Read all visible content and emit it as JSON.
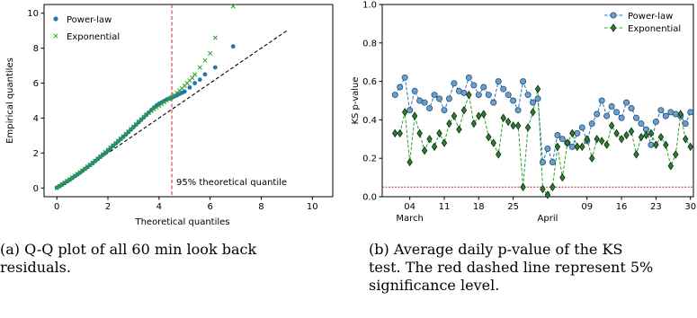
{
  "chart_data": [
    {
      "type": "scatter",
      "title": "",
      "xlabel": "Theoretical quantiles",
      "ylabel": "Empirical quantiles",
      "xlim": [
        -0.5,
        10.8
      ],
      "ylim": [
        -0.5,
        10.5
      ],
      "xticks": [
        "0",
        "2",
        "4",
        "6",
        "8",
        "10"
      ],
      "yticks": [
        "0",
        "2",
        "4",
        "6",
        "8",
        "10"
      ],
      "grid": false,
      "legend_position": "top-left",
      "series": [
        {
          "name": "Power-law",
          "marker": "circle",
          "color": "#1f77b4",
          "x": [
            0,
            0.1,
            0.2,
            0.3,
            0.4,
            0.5,
            0.6,
            0.7,
            0.8,
            0.9,
            1.0,
            1.1,
            1.2,
            1.3,
            1.4,
            1.5,
            1.6,
            1.7,
            1.8,
            1.9,
            2.0,
            2.1,
            2.2,
            2.3,
            2.4,
            2.5,
            2.6,
            2.7,
            2.8,
            2.9,
            3.0,
            3.1,
            3.2,
            3.3,
            3.4,
            3.5,
            3.6,
            3.7,
            3.8,
            3.9,
            4.0,
            4.1,
            4.2,
            4.3,
            4.4,
            4.5,
            4.6,
            4.7,
            4.8,
            4.9,
            5.0,
            5.2,
            5.4,
            5.6,
            5.8,
            6.2,
            6.9
          ],
          "y": [
            0.02,
            0.1,
            0.19,
            0.28,
            0.38,
            0.47,
            0.57,
            0.67,
            0.77,
            0.87,
            0.98,
            1.09,
            1.2,
            1.31,
            1.42,
            1.54,
            1.66,
            1.78,
            1.9,
            2.02,
            2.15,
            2.28,
            2.41,
            2.54,
            2.67,
            2.8,
            2.93,
            3.06,
            3.2,
            3.34,
            3.48,
            3.62,
            3.76,
            3.9,
            4.04,
            4.18,
            4.32,
            4.46,
            4.6,
            4.72,
            4.82,
            4.9,
            4.98,
            5.06,
            5.12,
            5.18,
            5.24,
            5.3,
            5.38,
            5.45,
            5.52,
            5.75,
            6.0,
            6.2,
            6.5,
            6.9,
            8.1
          ]
        },
        {
          "name": "Exponential",
          "marker": "x",
          "color": "#2ca02c",
          "x": [
            0,
            0.1,
            0.2,
            0.3,
            0.4,
            0.5,
            0.6,
            0.7,
            0.8,
            0.9,
            1.0,
            1.1,
            1.2,
            1.3,
            1.4,
            1.5,
            1.6,
            1.7,
            1.8,
            1.9,
            2.0,
            2.1,
            2.2,
            2.3,
            2.4,
            2.5,
            2.6,
            2.7,
            2.8,
            2.9,
            3.0,
            3.1,
            3.2,
            3.3,
            3.4,
            3.5,
            3.6,
            3.7,
            3.8,
            3.9,
            4.0,
            4.1,
            4.2,
            4.3,
            4.4,
            4.5,
            4.6,
            4.7,
            4.8,
            4.9,
            5.0,
            5.1,
            5.2,
            5.3,
            5.4,
            5.6,
            5.8,
            6.0,
            6.2,
            6.9
          ],
          "y": [
            0,
            0.1,
            0.2,
            0.3,
            0.4,
            0.5,
            0.6,
            0.7,
            0.8,
            0.9,
            1.0,
            1.11,
            1.22,
            1.33,
            1.44,
            1.56,
            1.68,
            1.8,
            1.92,
            2.05,
            2.18,
            2.31,
            2.44,
            2.57,
            2.7,
            2.83,
            2.96,
            3.1,
            3.24,
            3.38,
            3.52,
            3.66,
            3.8,
            3.94,
            4.08,
            4.2,
            4.3,
            4.4,
            4.5,
            4.6,
            4.7,
            4.8,
            4.9,
            5.0,
            5.1,
            5.2,
            5.32,
            5.45,
            5.58,
            5.7,
            5.85,
            6.0,
            6.15,
            6.3,
            6.5,
            6.9,
            7.3,
            7.7,
            8.6,
            10.4
          ]
        }
      ],
      "reference_line": {
        "x": [
          0,
          9
        ],
        "y": [
          0,
          9
        ],
        "style": "dashed",
        "color": "#000000"
      },
      "vline": {
        "x": 4.5,
        "color": "#d62728",
        "style": "dashed",
        "label": "95% theoretical quantile"
      }
    },
    {
      "type": "line",
      "title": "",
      "xlabel": "",
      "ylabel": "KS p-value",
      "ylim": [
        0.0,
        1.0
      ],
      "yticks": [
        "0.0",
        "0.2",
        "0.4",
        "0.6",
        "0.8",
        "1.0"
      ],
      "x_start": "2020-03-01",
      "x": [
        "2020-03-01",
        "2020-03-02",
        "2020-03-03",
        "2020-03-04",
        "2020-03-05",
        "2020-03-06",
        "2020-03-07",
        "2020-03-08",
        "2020-03-09",
        "2020-03-10",
        "2020-03-11",
        "2020-03-12",
        "2020-03-13",
        "2020-03-14",
        "2020-03-15",
        "2020-03-16",
        "2020-03-17",
        "2020-03-18",
        "2020-03-19",
        "2020-03-20",
        "2020-03-21",
        "2020-03-22",
        "2020-03-23",
        "2020-03-24",
        "2020-03-25",
        "2020-03-26",
        "2020-03-27",
        "2020-03-28",
        "2020-03-29",
        "2020-03-30",
        "2020-03-31",
        "2020-04-01",
        "2020-04-02",
        "2020-04-03",
        "2020-04-04",
        "2020-04-05",
        "2020-04-06",
        "2020-04-07",
        "2020-04-08",
        "2020-04-09",
        "2020-04-10",
        "2020-04-11",
        "2020-04-12",
        "2020-04-13",
        "2020-04-14",
        "2020-04-15",
        "2020-04-16",
        "2020-04-17",
        "2020-04-18",
        "2020-04-19",
        "2020-04-20",
        "2020-04-21",
        "2020-04-22",
        "2020-04-23",
        "2020-04-24",
        "2020-04-25",
        "2020-04-26",
        "2020-04-27",
        "2020-04-28",
        "2020-04-29",
        "2020-04-30"
      ],
      "xticks": [
        {
          "date": "2020-03-04",
          "label": "04"
        },
        {
          "date": "2020-03-11",
          "label": "11"
        },
        {
          "date": "2020-03-18",
          "label": "18"
        },
        {
          "date": "2020-03-25",
          "label": "25"
        },
        {
          "date": "2020-04-09",
          "label": "09"
        },
        {
          "date": "2020-04-16",
          "label": "16"
        },
        {
          "date": "2020-04-23",
          "label": "23"
        },
        {
          "date": "2020-04-30",
          "label": "30"
        }
      ],
      "month_labels": [
        {
          "date": "2020-03-04",
          "label": "March"
        },
        {
          "date": "2020-04-01",
          "label": "April"
        }
      ],
      "grid": false,
      "legend_position": "top-right",
      "series": [
        {
          "name": "Power-law",
          "marker": "circle",
          "color": "#1f77b4",
          "line_style": "dashed",
          "values": [
            0.53,
            0.57,
            0.62,
            0.45,
            0.55,
            0.5,
            0.49,
            0.46,
            0.53,
            0.51,
            0.45,
            0.51,
            0.59,
            0.55,
            0.54,
            0.62,
            0.58,
            0.53,
            0.57,
            0.53,
            0.49,
            0.6,
            0.56,
            0.53,
            0.5,
            0.45,
            0.6,
            0.53,
            0.49,
            0.51,
            0.18,
            0.25,
            0.18,
            0.32,
            0.3,
            0.28,
            0.26,
            0.33,
            0.36,
            0.29,
            0.38,
            0.43,
            0.5,
            0.42,
            0.47,
            0.44,
            0.41,
            0.49,
            0.46,
            0.41,
            0.38,
            0.35,
            0.27,
            0.39,
            0.45,
            0.42,
            0.44,
            0.43,
            0.42,
            0.38,
            0.44
          ]
        },
        {
          "name": "Exponential",
          "marker": "diamond",
          "color": "#2ca02c",
          "line_style": "dashed",
          "values": [
            0.33,
            0.33,
            0.44,
            0.18,
            0.42,
            0.33,
            0.24,
            0.3,
            0.26,
            0.33,
            0.28,
            0.38,
            0.42,
            0.35,
            0.45,
            0.53,
            0.38,
            0.42,
            0.43,
            0.31,
            0.28,
            0.22,
            0.41,
            0.39,
            0.37,
            0.37,
            0.05,
            0.36,
            0.44,
            0.56,
            0.04,
            0.01,
            0.05,
            0.26,
            0.1,
            0.28,
            0.33,
            0.26,
            0.26,
            0.3,
            0.2,
            0.3,
            0.29,
            0.27,
            0.37,
            0.33,
            0.3,
            0.32,
            0.34,
            0.22,
            0.31,
            0.32,
            0.33,
            0.27,
            0.31,
            0.27,
            0.16,
            0.22,
            0.43,
            0.3,
            0.26
          ]
        }
      ],
      "hline": {
        "y": 0.05,
        "color": "#d62728",
        "style": "dotted"
      }
    }
  ],
  "captions": {
    "a": {
      "line1": "(a) Q-Q plot of all 60 min look back",
      "line2": "residuals."
    },
    "b": {
      "line1": "(b)  Average daily p-value of the KS",
      "line2": "test.  The red dashed line represent 5%",
      "line3": "significance level."
    }
  }
}
